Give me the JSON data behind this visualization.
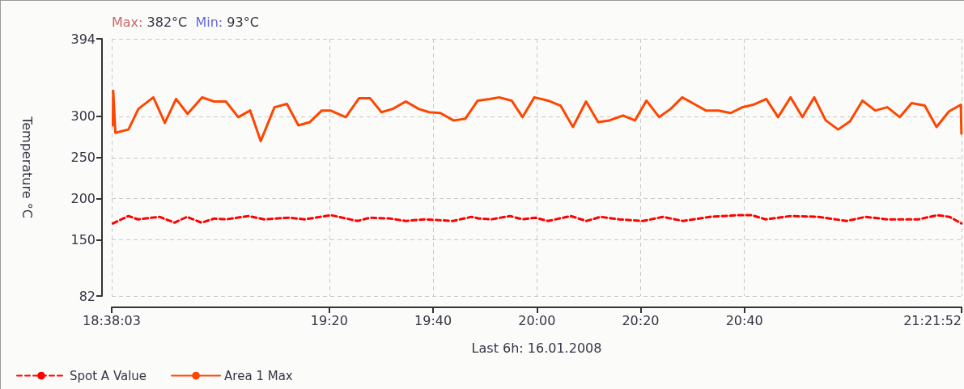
{
  "chart_data": {
    "type": "line",
    "xlabel": "Last 6h: 16.01.2008",
    "ylabel": "Temperature °C",
    "annotations": [
      "Max: 382°C",
      "Min: 93°C"
    ],
    "xlim": [
      18.6342,
      21.3644
    ],
    "xticks": [
      {
        "value": 18.6342,
        "label": "18:38:03"
      },
      {
        "value": 19.3333,
        "label": "19:20"
      },
      {
        "value": 19.6667,
        "label": "19:40"
      },
      {
        "value": 20,
        "label": "20:00"
      },
      {
        "value": 20.3333,
        "label": "20:20"
      },
      {
        "value": 20.6667,
        "label": "20:40"
      },
      {
        "value": 21.3644,
        "label": "21:21:52"
      }
    ],
    "ylim": [
      82,
      394
    ],
    "yticks": [
      82,
      150,
      200,
      250,
      300,
      394
    ],
    "grid": true,
    "legend": "bottom left",
    "marker": "none",
    "series": [
      {
        "name": "Spot A Value",
        "color": "#ff0000",
        "line_style": "dashed",
        "x": [
          18.638,
          18.688,
          18.718,
          18.788,
          18.836,
          18.876,
          18.923,
          18.964,
          19.001,
          19.074,
          19.124,
          19.204,
          19.254,
          19.339,
          19.424,
          19.464,
          19.529,
          19.579,
          19.639,
          19.73,
          19.79,
          19.814,
          19.854,
          19.914,
          19.954,
          19.994,
          20.036,
          20.109,
          20.159,
          20.205,
          20.264,
          20.34,
          20.405,
          20.47,
          20.555,
          20.645,
          20.69,
          20.735,
          20.815,
          20.905,
          20.995,
          21.056,
          21.126,
          21.226,
          21.286,
          21.326,
          21.364
        ],
        "values": [
          170,
          179,
          175,
          178,
          171,
          178,
          171,
          176,
          175,
          179,
          175,
          177,
          175,
          180,
          173,
          177,
          176,
          173,
          175,
          173,
          178,
          176,
          175,
          179,
          175,
          177,
          173,
          179,
          173,
          178,
          175,
          173,
          178,
          173,
          178,
          180,
          180,
          175,
          179,
          178,
          173,
          178,
          175,
          175,
          180,
          178,
          170
        ]
      },
      {
        "name": "Area 1 Max",
        "color": "#ff4500",
        "line_style": "solid",
        "x": [
          18.638,
          18.639,
          18.646,
          18.688,
          18.72,
          18.768,
          18.805,
          18.841,
          18.878,
          18.925,
          18.962,
          19.001,
          19.041,
          19.079,
          19.113,
          19.157,
          19.197,
          19.234,
          19.271,
          19.309,
          19.337,
          19.386,
          19.429,
          19.464,
          19.501,
          19.537,
          19.579,
          19.62,
          19.654,
          19.69,
          19.732,
          19.77,
          19.81,
          19.848,
          19.879,
          19.919,
          19.954,
          19.992,
          20.036,
          20.076,
          20.116,
          20.158,
          20.197,
          20.233,
          20.277,
          20.315,
          20.352,
          20.393,
          20.43,
          20.467,
          20.505,
          20.543,
          20.583,
          20.623,
          20.66,
          20.695,
          20.737,
          20.775,
          20.815,
          20.853,
          20.891,
          20.928,
          20.968,
          21.006,
          21.046,
          21.087,
          21.126,
          21.166,
          21.204,
          21.246,
          21.284,
          21.324,
          21.362,
          21.364
        ],
        "values": [
          289,
          331,
          280,
          284,
          309,
          323,
          292,
          321,
          303,
          323,
          318,
          318,
          299,
          307,
          270,
          311,
          315,
          289,
          293,
          307,
          307,
          299,
          322,
          322,
          305,
          309,
          318,
          309,
          305,
          304,
          295,
          297,
          319,
          321,
          323,
          319,
          299,
          323,
          319,
          313,
          287,
          318,
          293,
          295,
          301,
          295,
          319,
          299,
          309,
          323,
          315,
          307,
          307,
          304,
          311,
          314,
          321,
          299,
          323,
          299,
          323,
          295,
          284,
          294,
          319,
          307,
          311,
          299,
          316,
          313,
          287,
          306,
          314,
          279
        ]
      }
    ]
  }
}
